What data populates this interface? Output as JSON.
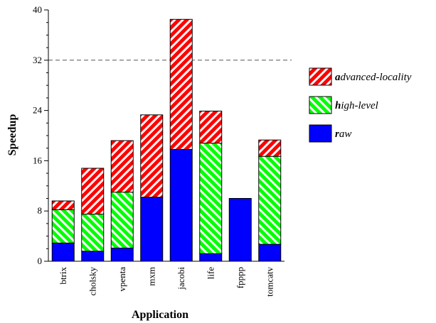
{
  "chart_data": {
    "type": "bar",
    "stacked": true,
    "xlabel": "Application",
    "ylabel": "Speedup",
    "ylim": [
      0,
      40
    ],
    "yticks": [
      0,
      8,
      16,
      24,
      32,
      40
    ],
    "reference_line": 32,
    "categories": [
      "btrix",
      "cholsky",
      "vpenta",
      "mxm",
      "jacobi",
      "life",
      "fpppp",
      "tomcatv"
    ],
    "series": [
      {
        "name": "raw",
        "legend_initial": "r",
        "legend_rest": "aw",
        "color": "#0000ff",
        "pattern": "solid",
        "values": [
          2.9,
          1.6,
          2.1,
          10.2,
          17.8,
          1.2,
          10.0,
          2.7
        ]
      },
      {
        "name": "high-level",
        "legend_initial": "h",
        "legend_rest": "igh-level",
        "color": "#00ff00",
        "pattern": "hatch",
        "values": [
          5.3,
          5.9,
          8.9,
          0.0,
          0.0,
          17.6,
          0.0,
          14.0
        ]
      },
      {
        "name": "advanced-locality",
        "legend_initial": "a",
        "legend_rest": "dvanced-locality",
        "color": "#ff0000",
        "pattern": "hatch",
        "values": [
          1.4,
          7.3,
          8.2,
          13.1,
          20.7,
          5.1,
          0.0,
          2.6
        ]
      }
    ],
    "legend_order": [
      "advanced-locality",
      "high-level",
      "raw"
    ],
    "legend_position": "right",
    "grid": false
  }
}
